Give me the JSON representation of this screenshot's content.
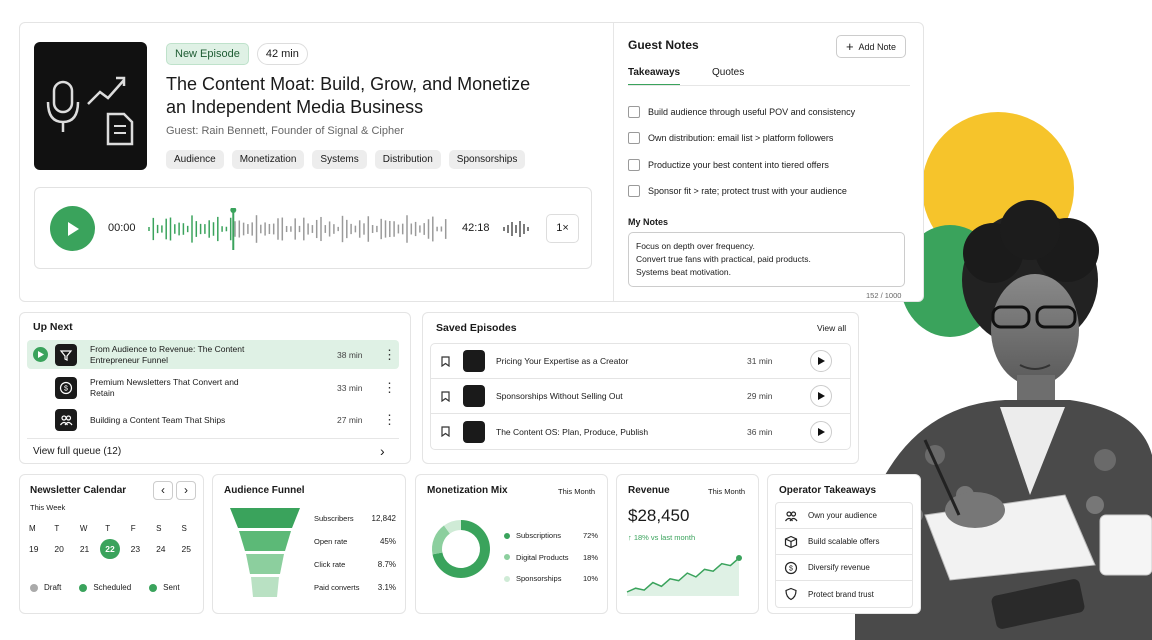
{
  "episode": {
    "badge": "New Episode",
    "duration": "42 min",
    "title_line1": "The Content Moat: Build, Grow, and Monetize",
    "title_line2": "an Independent Media Business",
    "guest": "Guest: Rain Bennett, Founder of Signal & Cipher",
    "tags": [
      "Audience",
      "Monetization",
      "Systems",
      "Distribution",
      "Sponsorships"
    ],
    "player": {
      "current": "00:00",
      "total": "42:18",
      "speed": "1×",
      "progress": 0.28
    }
  },
  "guest_notes": {
    "title": "Guest Notes",
    "add_label": "Add Note",
    "tabs": [
      "Takeaways",
      "Quotes"
    ],
    "takeaways": [
      "Build audience through useful POV and consistency",
      "Own distribution: email list > platform followers",
      "Productize your best content into tiered offers",
      "Sponsor fit > rate; protect trust with your audience"
    ],
    "my_notes_label": "My Notes",
    "my_notes_lines": [
      "Focus on depth over frequency.",
      "Convert true fans with practical, paid products.",
      "Systems beat motivation."
    ],
    "char_count": "152 / 1000"
  },
  "up_next": {
    "title": "Up Next",
    "items": [
      {
        "title": "From Audience to Revenue: The Content Entrepreneur Funnel",
        "duration": "38 min",
        "icon": "funnel-icon"
      },
      {
        "title": "Premium Newsletters That Convert and Retain",
        "duration": "33 min",
        "icon": "dollar-icon"
      },
      {
        "title": "Building a Content Team That Ships",
        "duration": "27 min",
        "icon": "team-icon"
      }
    ],
    "footer": "View full queue (12)"
  },
  "saved": {
    "title": "Saved Episodes",
    "view_all": "View all",
    "items": [
      {
        "title": "Pricing Your Expertise as a Creator",
        "duration": "31 min"
      },
      {
        "title": "Sponsorships Without Selling Out",
        "duration": "29 min"
      },
      {
        "title": "The Content OS: Plan, Produce, Publish",
        "duration": "36 min"
      }
    ]
  },
  "calendar": {
    "title": "Newsletter Calendar",
    "subtitle": "This Week",
    "days": [
      "M",
      "T",
      "W",
      "T",
      "F",
      "S",
      "S"
    ],
    "dates": [
      "19",
      "20",
      "21",
      "22",
      "23",
      "24",
      "25"
    ],
    "selected_index": 3,
    "legend": [
      "Draft",
      "Scheduled",
      "Sent"
    ]
  },
  "funnel": {
    "title": "Audience Funnel",
    "rows": [
      {
        "label": "Subscribers",
        "value": "12,842"
      },
      {
        "label": "Open rate",
        "value": "45%"
      },
      {
        "label": "Click rate",
        "value": "8.7%"
      },
      {
        "label": "Paid converts",
        "value": "3.1%"
      }
    ]
  },
  "mix": {
    "title": "Monetization Mix",
    "period": "This Month",
    "rows": [
      {
        "label": "Subscriptions",
        "value": "72%",
        "pct": 72
      },
      {
        "label": "Digital Products",
        "value": "18%",
        "pct": 18
      },
      {
        "label": "Sponsorships",
        "value": "10%",
        "pct": 10
      }
    ]
  },
  "revenue": {
    "title": "Revenue",
    "period": "This Month",
    "amount": "$28,450",
    "change": "↑ 18% vs last month",
    "trend": [
      4,
      6,
      5,
      9,
      7,
      11,
      10,
      14,
      12,
      16,
      15,
      19,
      18,
      22
    ]
  },
  "operator": {
    "title": "Operator Takeaways",
    "items": [
      {
        "label": "Own your audience",
        "icon": "people-icon"
      },
      {
        "label": "Build scalable offers",
        "icon": "box-icon"
      },
      {
        "label": "Diversify revenue",
        "icon": "dollar-icon"
      },
      {
        "label": "Protect brand trust",
        "icon": "shield-icon"
      }
    ]
  },
  "colors": {
    "accent": "#3aa35c",
    "accent_light": "#dff1e5",
    "yellow": "#f6c42b"
  }
}
